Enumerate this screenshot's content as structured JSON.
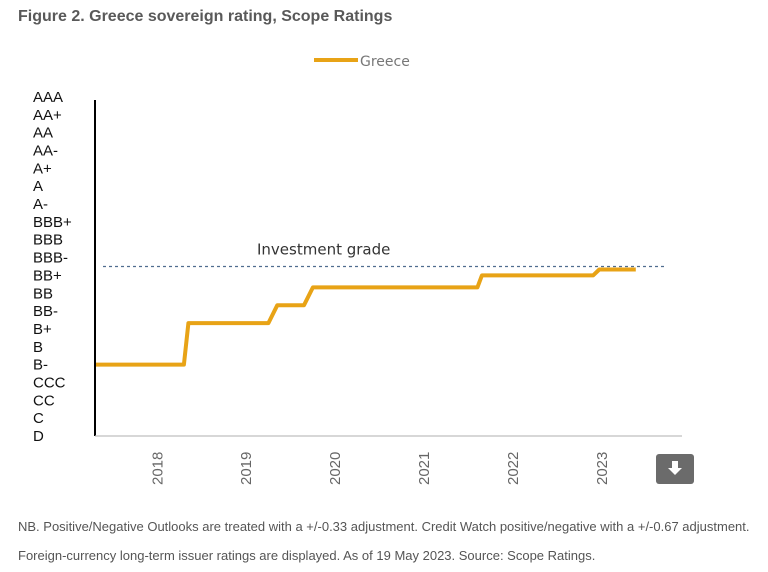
{
  "title": "Figure 2. Greece sovereign rating, Scope Ratings",
  "note": "NB. Positive/Negative Outlooks are treated with a +/-0.33 adjustment. Credit Watch positive/negative with a +/-0.67 adjustment. Foreign-currency long-term issuer ratings are displayed. As of 19 May 2023. Source: Scope Ratings.",
  "download_icon": "download-icon",
  "chart_data": {
    "type": "line",
    "legend_position": "top-center",
    "grid": false,
    "y_categories": [
      "AAA",
      "AA+",
      "AA",
      "AA-",
      "A+",
      "A",
      "A-",
      "BBB+",
      "BBB",
      "BBB-",
      "BB+",
      "BB",
      "BB-",
      "B+",
      "B",
      "B-",
      "CCC",
      "CC",
      "C",
      "D"
    ],
    "x_ticks": [
      "2018",
      "2019",
      "2020",
      "2021",
      "2022",
      "2023"
    ],
    "xlim": [
      2017.3,
      2023.9
    ],
    "reference_line": {
      "label": "Investment grade",
      "y_index": 9.5,
      "color": "#4f6d8f"
    },
    "series": [
      {
        "name": "Greece",
        "color": "#e8a316",
        "points": [
          [
            2017.3,
            15.0
          ],
          [
            2018.3,
            15.0
          ],
          [
            2018.35,
            12.67
          ],
          [
            2019.25,
            12.67
          ],
          [
            2019.35,
            11.67
          ],
          [
            2019.65,
            11.67
          ],
          [
            2019.75,
            10.67
          ],
          [
            2021.6,
            10.67
          ],
          [
            2021.65,
            10.0
          ],
          [
            2022.9,
            10.0
          ],
          [
            2022.97,
            9.67
          ],
          [
            2023.38,
            9.67
          ]
        ]
      }
    ]
  }
}
